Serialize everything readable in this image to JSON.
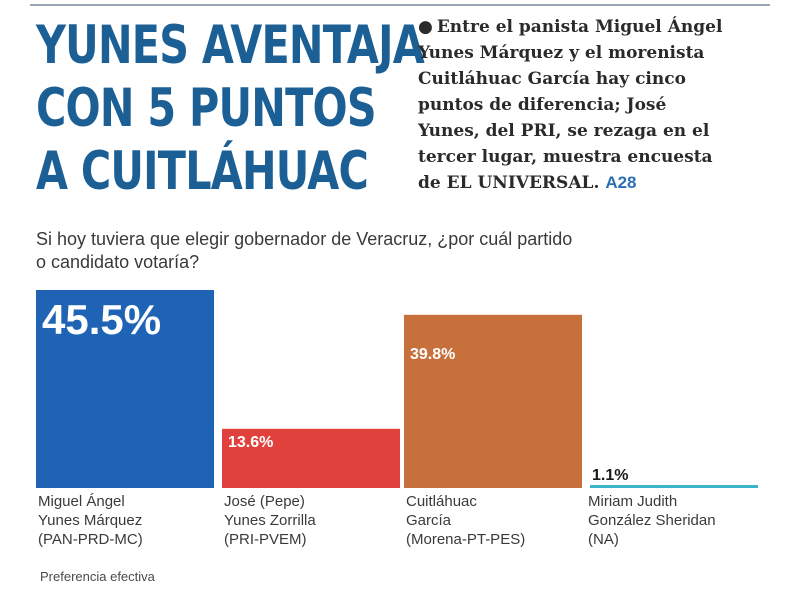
{
  "headline": {
    "lines": [
      "YUNES AVENTAJA",
      "CON 5 PUNTOS",
      "A CUITLÁHUAC"
    ]
  },
  "summary": {
    "lines": [
      "Entre el panista Miguel Ángel",
      "Yunes Márquez y el morenista",
      "Cuitláhuac García hay cinco",
      "puntos de diferencia; José",
      "Yunes, del PRI, se rezaga en el",
      "tercer lugar, muestra encuesta",
      "de EL UNIVERSAL."
    ],
    "page_ref": "A28"
  },
  "footnote": "Preferencia efectiva",
  "colors": {
    "headline": "#1b5f95",
    "page_ref": "#2b6fb2"
  },
  "chart_data": {
    "type": "bar",
    "title": "Si hoy tuviera que elegir gobernador de Veracruz, ¿por cuál partido o candidato votaría?",
    "title_lines": [
      "Si hoy tuviera que elegir gobernador de Veracruz, ¿por cuál partido",
      "o candidato votaría?"
    ],
    "ylim": [
      0,
      45.5
    ],
    "grid": false,
    "legend": "none",
    "categories": [
      {
        "name_lines": [
          "Miguel Ángel",
          "Yunes Márquez"
        ],
        "party": "(PAN-PRD-MC)",
        "value": 45.5,
        "label": "45.5%",
        "color": "#1f64b4"
      },
      {
        "name_lines": [
          "José (Pepe)",
          "Yunes Zorrilla"
        ],
        "party": "(PRI-PVEM)",
        "value": 13.6,
        "label": "13.6%",
        "color": "#e1413d"
      },
      {
        "name_lines": [
          "Cuitláhuac",
          "García"
        ],
        "party": "(Morena-PT-PES)",
        "value": 39.8,
        "label": "39.8%",
        "color": "#c8703c"
      },
      {
        "name_lines": [
          "Miriam Judith",
          "González Sheridan"
        ],
        "party": "(NA)",
        "value": 1.1,
        "label": "1.1%",
        "color": "#38b5c8"
      }
    ]
  }
}
